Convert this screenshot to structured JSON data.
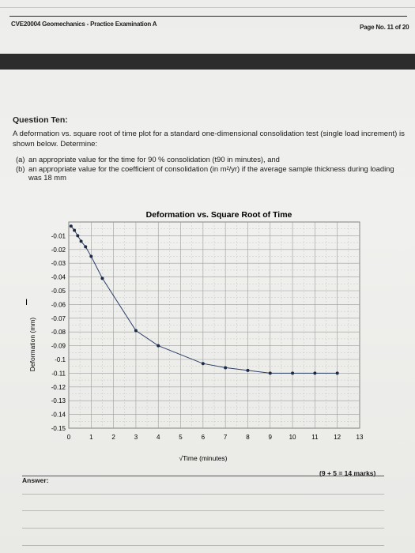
{
  "header": {
    "title": "CVE20004 Geomechanics - Practice Examination A",
    "page": "Page No. 11 of 20"
  },
  "question": {
    "title": "Question Ten:",
    "intro": "A deformation vs. square root of time plot for a standard one-dimensional consolidation test (single load increment) is shown below. Determine:",
    "items": [
      {
        "label": "(a)",
        "text": "an appropriate value for the time for 90 % consolidation (t90 in minutes), and"
      },
      {
        "label": "(b)",
        "text": "an appropriate value for the coefficient of consolidation (in m²/yr) if the average sample thickness during loading was 18 mm"
      }
    ],
    "marks": "(9 + 5 = 14 marks)",
    "answer_label": "Answer:"
  },
  "chart_data": {
    "type": "line",
    "title": "Deformation vs. Square Root of Time",
    "xlabel": "√Time (minutes)",
    "ylabel": "Deformation (mm)",
    "xlim": [
      0,
      13
    ],
    "ylim": [
      -0.15,
      0
    ],
    "x_ticks": [
      "0",
      "1",
      "2",
      "3",
      "4",
      "5",
      "6",
      "7",
      "8",
      "9",
      "10",
      "11",
      "12",
      "13"
    ],
    "y_ticks": [
      "-0.01",
      "-0.02",
      "-0.03",
      "-0.04",
      "-0.05",
      "-0.06",
      "-0.07",
      "-0.08",
      "-0.09",
      "-0.1",
      "-0.11",
      "-0.12",
      "-0.13",
      "-0.14",
      "-0.15"
    ],
    "grid": true,
    "series": [
      {
        "x": [
          0.1,
          0.25,
          0.4,
          0.55,
          0.75,
          1.0,
          1.5,
          3.0,
          4.0,
          6.0,
          7.0,
          8.0,
          9.0,
          10.0,
          11.0,
          12.0
        ],
        "y": [
          -0.003,
          -0.006,
          -0.01,
          -0.014,
          -0.018,
          -0.025,
          -0.041,
          -0.079,
          -0.09,
          -0.103,
          -0.106,
          -0.108,
          -0.11,
          -0.11,
          -0.11,
          -0.11
        ]
      }
    ]
  }
}
